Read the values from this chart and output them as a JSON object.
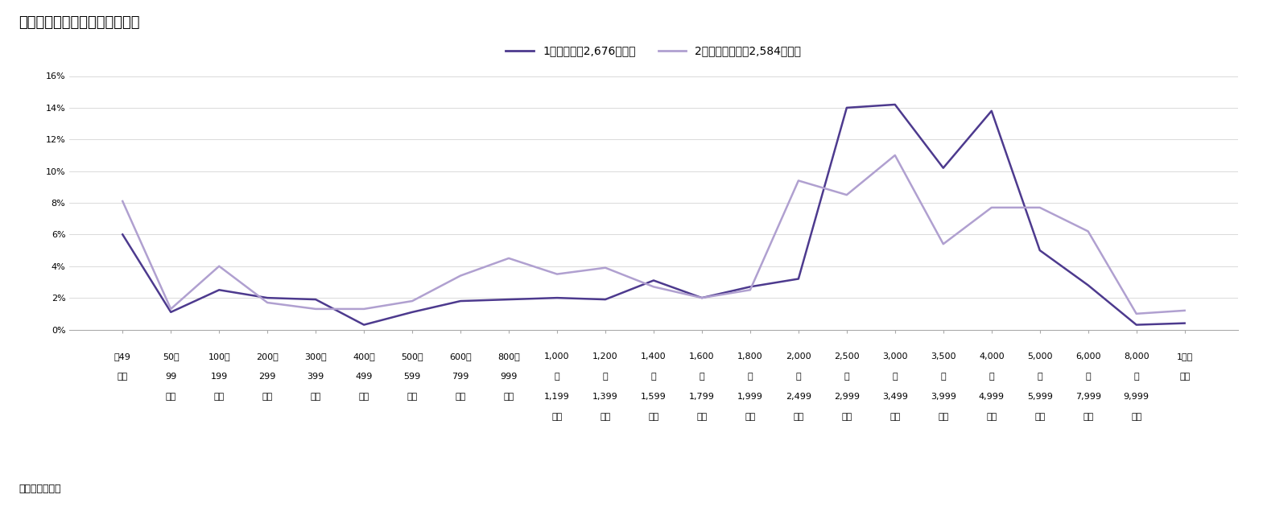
{
  "title": "図表４　取得回数別、取得費用",
  "legend1": "1回目（平均2,676万円）",
  "legend2": "2回目以上（平均2,584万円）",
  "note": "（注）不明除く",
  "categories_line1": [
    "〜49",
    "50〜",
    "100〜",
    "200〜",
    "300〜",
    "400〜",
    "500〜",
    "600〜",
    "800〜",
    "1,000",
    "1,200",
    "1,400",
    "1,600",
    "1,800",
    "2,000",
    "2,500",
    "3,000",
    "3,500",
    "4,000",
    "5,000",
    "6,000",
    "8,000",
    "1億円"
  ],
  "categories_line2": [
    "万円",
    "99",
    "199",
    "299",
    "399",
    "499",
    "599",
    "799",
    "999",
    "〜",
    "〜",
    "〜",
    "〜",
    "〜",
    "〜",
    "〜",
    "〜",
    "〜",
    "〜",
    "〜",
    "〜",
    "〜",
    "以上"
  ],
  "categories_line3": [
    "",
    "万円",
    "万円",
    "万円",
    "万円",
    "万円",
    "万円",
    "万円",
    "万円",
    "1,199",
    "1,399",
    "1,599",
    "1,799",
    "1,999",
    "2,499",
    "2,999",
    "3,499",
    "3,999",
    "4,999",
    "5,999",
    "7,999",
    "9,999",
    ""
  ],
  "categories_line4": [
    "",
    "",
    "",
    "",
    "",
    "",
    "",
    "",
    "",
    "万円",
    "万円",
    "万円",
    "万円",
    "万円",
    "万円",
    "万円",
    "万円",
    "万円",
    "万円",
    "万円",
    "万円",
    "万円",
    ""
  ],
  "series1": [
    6.0,
    1.1,
    2.5,
    2.0,
    1.9,
    0.3,
    1.1,
    1.8,
    1.9,
    2.0,
    1.9,
    3.1,
    2.0,
    2.7,
    3.2,
    14.0,
    14.2,
    10.2,
    13.8,
    5.0,
    2.8,
    0.3,
    0.4
  ],
  "series2": [
    8.1,
    1.3,
    4.0,
    1.7,
    1.3,
    1.3,
    1.8,
    3.4,
    4.5,
    3.5,
    3.9,
    2.7,
    2.0,
    2.5,
    9.4,
    8.5,
    11.0,
    5.4,
    7.7,
    7.7,
    6.2,
    1.0,
    1.2
  ],
  "color1": "#4d3a8e",
  "color2": "#b0a0d0",
  "ylim": [
    0,
    16
  ],
  "yticks": [
    0,
    2,
    4,
    6,
    8,
    10,
    12,
    14,
    16
  ],
  "ytick_labels": [
    "0%",
    "2%",
    "4%",
    "6%",
    "8%",
    "10%",
    "12%",
    "14%",
    "16%"
  ],
  "bg_color": "#ffffff",
  "title_fontsize": 13,
  "legend_fontsize": 10,
  "tick_fontsize": 8
}
